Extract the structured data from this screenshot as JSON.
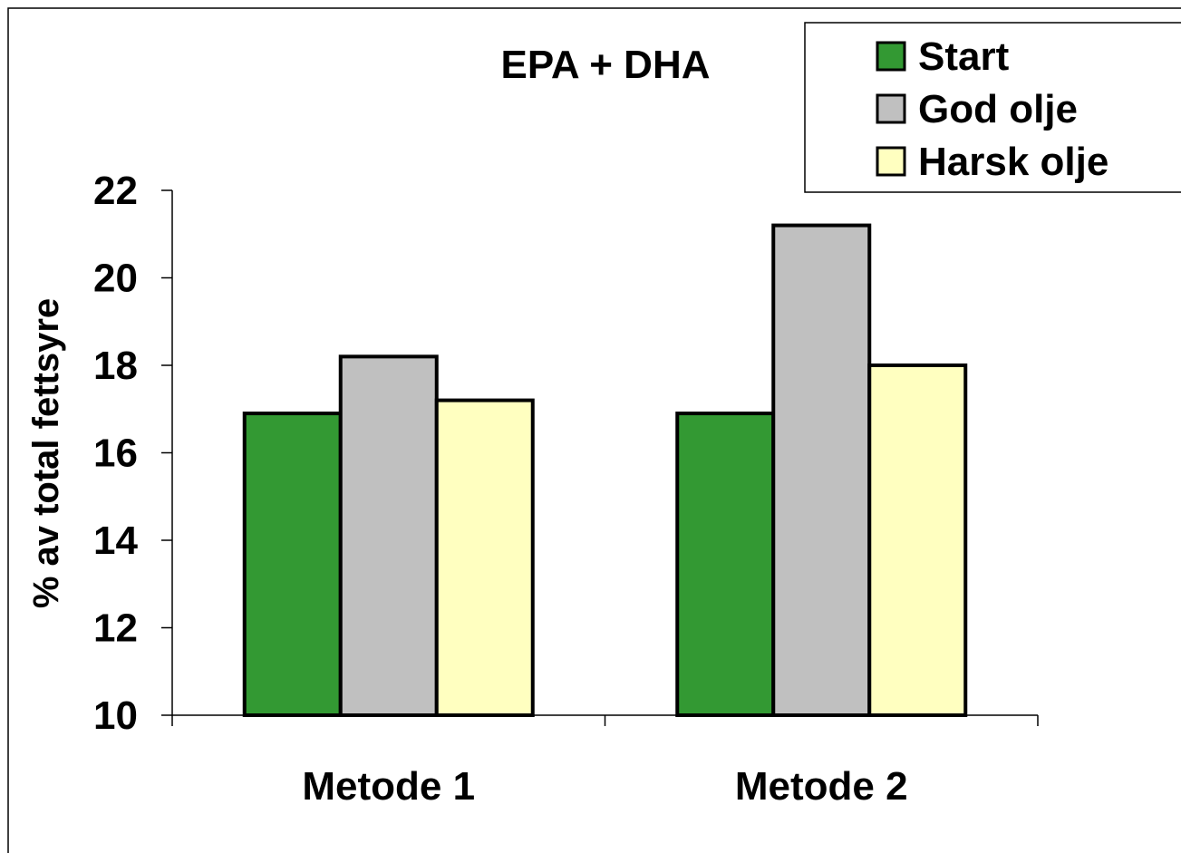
{
  "chart_data": {
    "type": "bar",
    "title": "EPA + DHA",
    "xlabel": "",
    "ylabel": "% av total fettsyre",
    "categories": [
      "Metode 1",
      "Metode 2"
    ],
    "series": [
      {
        "name": "Start",
        "values": [
          16.9,
          16.9
        ],
        "color": "#339933"
      },
      {
        "name": "God olje",
        "values": [
          18.2,
          21.2
        ],
        "color": "#c0c0c0"
      },
      {
        "name": "Harsk olje",
        "values": [
          17.2,
          18.0
        ],
        "color": "#ffffc0"
      }
    ],
    "ylim": [
      10,
      22
    ],
    "yticks": [
      "10",
      "12",
      "14",
      "16",
      "18",
      "20",
      "22"
    ],
    "grid": false,
    "legend_position": "top-right"
  }
}
